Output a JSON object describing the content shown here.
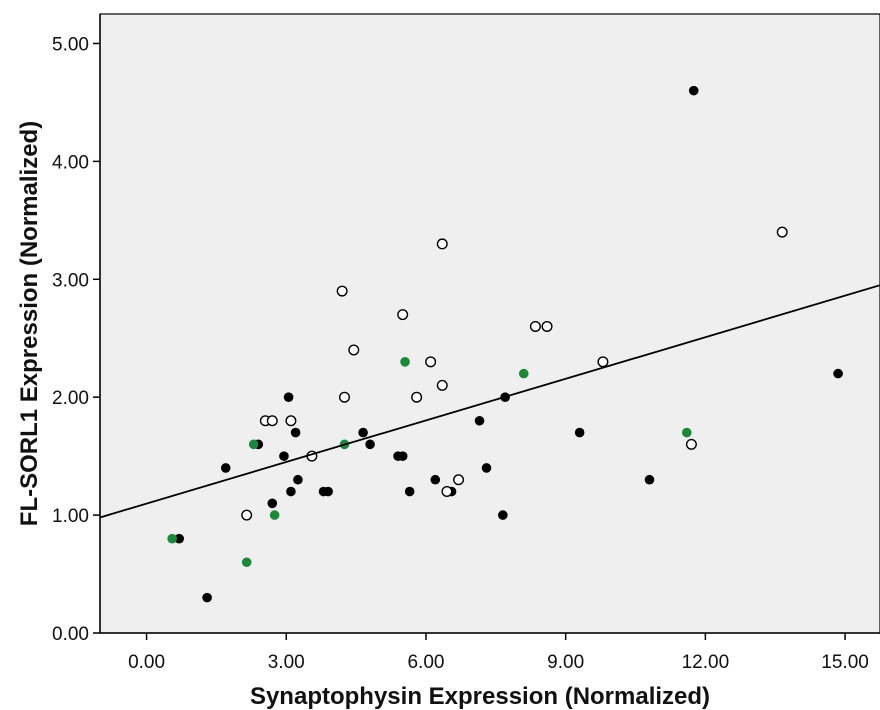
{
  "chart_data": {
    "type": "scatter",
    "xlabel": "Synaptophysin Expression (Normalized)",
    "ylabel": "FL-SORL1 Expression (Normalized)",
    "xlim": [
      -1.0,
      15.75
    ],
    "ylim": [
      0.0,
      5.25
    ],
    "x_ticks": [
      "0.00",
      "3.00",
      "6.00",
      "9.00",
      "12.00",
      "15.00"
    ],
    "x_tick_values": [
      0,
      3,
      6,
      9,
      12,
      15
    ],
    "y_ticks": [
      "0.00",
      "1.00",
      "2.00",
      "3.00",
      "4.00",
      "5.00"
    ],
    "y_tick_values": [
      0,
      1,
      2,
      3,
      4,
      5
    ],
    "grid": false,
    "plot_background": "#efefef",
    "fit_line": {
      "x": [
        -1.0,
        15.75
      ],
      "y": [
        0.98,
        2.95
      ]
    },
    "series": [
      {
        "marker": "filled",
        "color": "#000000",
        "points": [
          [
            0.7,
            0.8
          ],
          [
            1.3,
            0.3
          ],
          [
            1.7,
            1.4
          ],
          [
            2.4,
            1.6
          ],
          [
            2.7,
            1.1
          ],
          [
            2.95,
            1.5
          ],
          [
            3.05,
            2.0
          ],
          [
            3.1,
            1.2
          ],
          [
            3.2,
            1.7
          ],
          [
            3.25,
            1.3
          ],
          [
            3.8,
            1.2
          ],
          [
            3.9,
            1.2
          ],
          [
            4.65,
            1.7
          ],
          [
            4.8,
            1.6
          ],
          [
            5.4,
            1.5
          ],
          [
            5.5,
            1.5
          ],
          [
            5.65,
            1.2
          ],
          [
            6.2,
            1.3
          ],
          [
            6.45,
            1.2
          ],
          [
            6.55,
            1.2
          ],
          [
            7.15,
            1.8
          ],
          [
            7.3,
            1.4
          ],
          [
            7.65,
            1.0
          ],
          [
            7.7,
            2.0
          ],
          [
            9.3,
            1.7
          ],
          [
            10.8,
            1.3
          ],
          [
            11.75,
            4.6
          ],
          [
            14.85,
            2.2
          ]
        ]
      },
      {
        "marker": "open",
        "color": "#000000",
        "points": [
          [
            2.15,
            1.0
          ],
          [
            2.55,
            1.8
          ],
          [
            2.7,
            1.8
          ],
          [
            3.1,
            1.8
          ],
          [
            3.55,
            1.5
          ],
          [
            4.2,
            2.9
          ],
          [
            4.25,
            2.0
          ],
          [
            4.45,
            2.4
          ],
          [
            5.5,
            2.7
          ],
          [
            5.8,
            2.0
          ],
          [
            6.1,
            2.3
          ],
          [
            6.35,
            3.3
          ],
          [
            6.35,
            2.1
          ],
          [
            6.45,
            1.2
          ],
          [
            6.7,
            1.3
          ],
          [
            8.35,
            2.6
          ],
          [
            8.6,
            2.6
          ],
          [
            9.8,
            2.3
          ],
          [
            11.7,
            1.6
          ],
          [
            13.65,
            3.4
          ]
        ]
      },
      {
        "marker": "filled",
        "color": "#1a8a3a",
        "points": [
          [
            0.55,
            0.8
          ],
          [
            2.15,
            0.6
          ],
          [
            2.3,
            1.6
          ],
          [
            2.75,
            1.0
          ],
          [
            4.25,
            1.6
          ],
          [
            5.55,
            2.3
          ],
          [
            8.1,
            2.2
          ],
          [
            11.6,
            1.7
          ]
        ]
      }
    ]
  }
}
